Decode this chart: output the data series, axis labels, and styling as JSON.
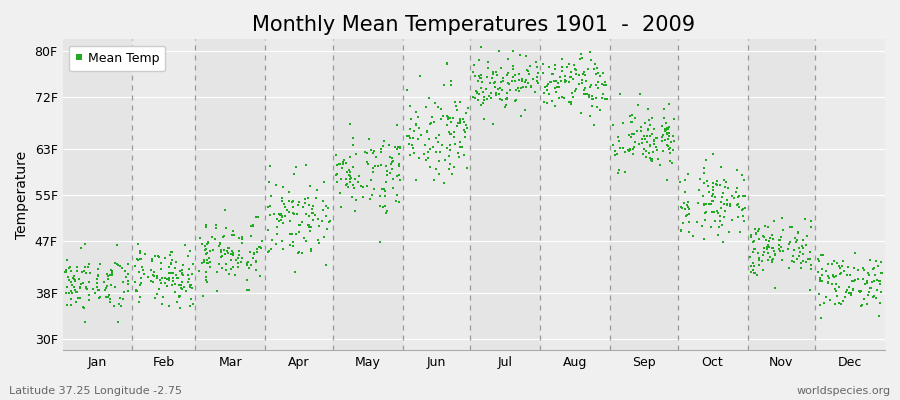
{
  "title": "Monthly Mean Temperatures 1901  -  2009",
  "ylabel": "Temperature",
  "xlabel_labels": [
    "Jan",
    "Feb",
    "Mar",
    "Apr",
    "May",
    "Jun",
    "Jul",
    "Aug",
    "Sep",
    "Oct",
    "Nov",
    "Dec"
  ],
  "ytick_labels": [
    "30F",
    "38F",
    "47F",
    "55F",
    "63F",
    "72F",
    "80F"
  ],
  "ytick_values": [
    30,
    38,
    47,
    55,
    63,
    72,
    80
  ],
  "ylim": [
    28,
    82
  ],
  "background_color": "#f0f0f0",
  "plot_bg_color": "#ebebeb",
  "dot_color": "#22aa22",
  "dot_size": 3,
  "legend_label": "Mean Temp",
  "footer_left": "Latitude 37.25 Longitude -2.75",
  "footer_right": "worldspecies.org",
  "month_means_F": [
    39.5,
    40.5,
    45.0,
    51.0,
    59.0,
    66.0,
    74.5,
    74.0,
    64.5,
    54.0,
    45.5,
    40.0
  ],
  "month_stds_F": [
    2.5,
    2.5,
    3.0,
    3.5,
    3.5,
    4.0,
    2.5,
    2.5,
    3.0,
    3.0,
    2.5,
    2.5
  ],
  "num_years": 109,
  "seed": 42,
  "month_days": [
    31,
    28,
    31,
    30,
    31,
    30,
    31,
    31,
    30,
    31,
    30,
    31
  ],
  "dashed_line_color": "#999999",
  "grid_color": "#ffffff",
  "title_fontsize": 15,
  "axis_label_fontsize": 10,
  "tick_fontsize": 9,
  "footer_fontsize": 8
}
